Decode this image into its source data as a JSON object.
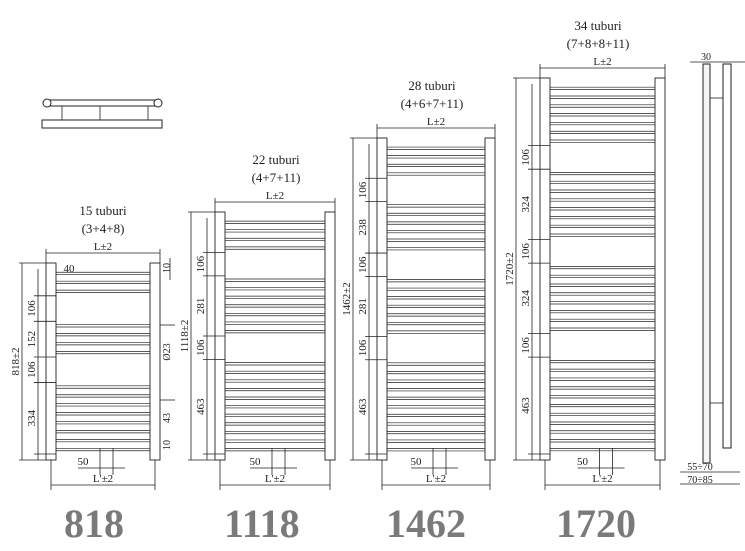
{
  "radiators": [
    {
      "tubes_label": "15 tuburi",
      "groups_label": "(3+4+8)",
      "height_mm": 818,
      "height_label": "818±2",
      "width_label": "L±2",
      "bottom_width_label": "L'±2",
      "pitch_label": "50",
      "groups": [
        3,
        4,
        8
      ],
      "dims": [
        "106",
        "152",
        "106",
        "334"
      ],
      "model": "818",
      "extra": {
        "collector": "40",
        "top": "10",
        "diameter": "Ø23",
        "conn": "43",
        "bottom": "10"
      }
    },
    {
      "tubes_label": "22 tuburi",
      "groups_label": "(4+7+11)",
      "height_mm": 1118,
      "height_label": "1118±2",
      "width_label": "L±2",
      "bottom_width_label": "L'±2",
      "pitch_label": "50",
      "groups": [
        4,
        7,
        11
      ],
      "dims": [
        "106",
        "281",
        "106",
        "463"
      ],
      "model": "1118"
    },
    {
      "tubes_label": "28 tuburi",
      "groups_label": "(4+6+7+11)",
      "height_mm": 1462,
      "height_label": "1462±2",
      "width_label": "L±2",
      "bottom_width_label": "L'±2",
      "pitch_label": "50",
      "groups": [
        4,
        6,
        7,
        11
      ],
      "dims": [
        "106",
        "238",
        "106",
        "281",
        "106",
        "463"
      ],
      "model": "1462"
    },
    {
      "tubes_label": "34 tuburi",
      "groups_label": "(7+8+8+11)",
      "height_mm": 1720,
      "height_label": "1720±2",
      "width_label": "L±2",
      "bottom_width_label": "L'±2",
      "pitch_label": "50",
      "groups": [
        7,
        8,
        8,
        11
      ],
      "dims": [
        "106",
        "324",
        "106",
        "324",
        "106",
        "463"
      ],
      "model": "1720"
    }
  ],
  "side_view": {
    "depth": "30",
    "wall_gap_1": "55÷70",
    "wall_gap_2": "70÷85"
  }
}
